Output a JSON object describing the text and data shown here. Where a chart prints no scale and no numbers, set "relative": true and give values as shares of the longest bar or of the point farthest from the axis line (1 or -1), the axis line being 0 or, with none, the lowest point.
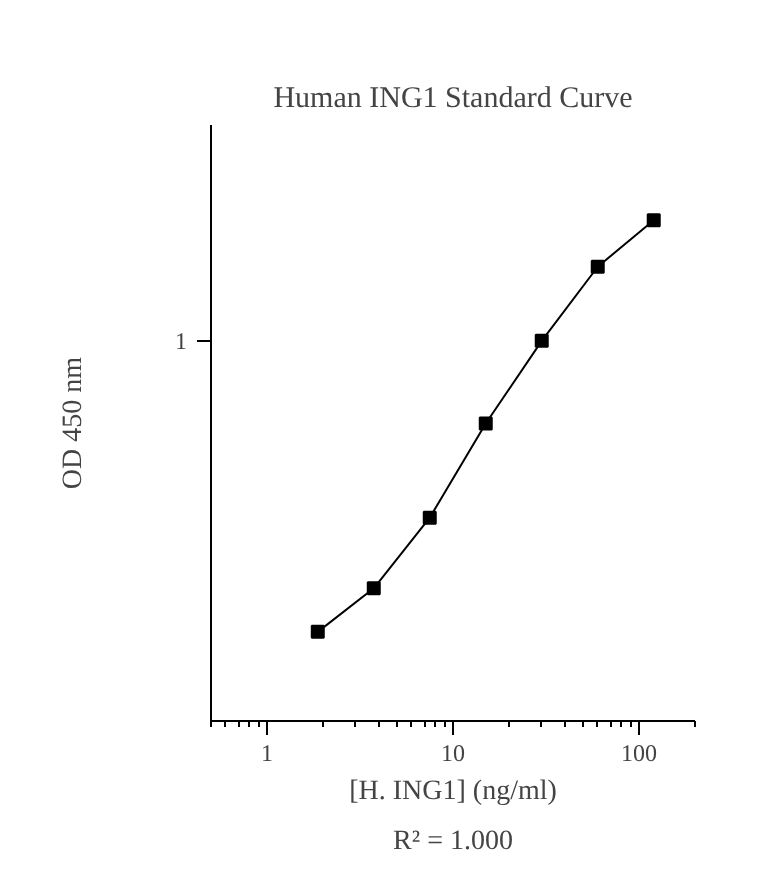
{
  "chart_data": {
    "type": "line",
    "title": "Human ING1 Standard Curve",
    "xlabel": "[H. ING1] (ng/ml)",
    "ylabel": "OD 450 nm",
    "x": [
      1.875,
      3.75,
      7.5,
      15,
      30,
      60,
      120
    ],
    "series": [
      {
        "color": "#000000",
        "values": [
          0.178,
          0.265,
          0.406,
          0.594,
          0.759,
          0.907,
          1
        ]
      }
    ],
    "relative": true,
    "log": "x",
    "xlim": [
      0.5,
      200
    ],
    "xticks": [
      1,
      10,
      100
    ],
    "marker": "square",
    "line_style": "solid",
    "grid": false,
    "annotations": [
      "1",
      "R² = 1.000"
    ]
  }
}
